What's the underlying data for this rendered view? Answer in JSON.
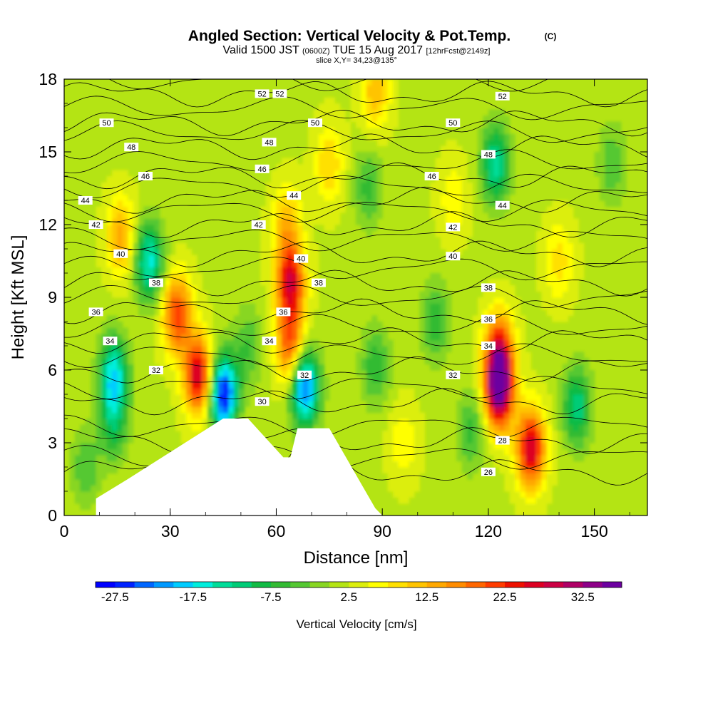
{
  "chart_data": {
    "type": "heatmap",
    "title": "Angled Section: Vertical Velocity & Pot.Temp.",
    "title_unit": "(C)",
    "subtitle": {
      "main_a": "Valid 1500 JST",
      "small_a": "(0600Z)",
      "main_b": "TUE 15 Aug 2017",
      "small_b": "[12hrFcst@2149z]"
    },
    "slice_text": "slice X,Y= 34,23@135°",
    "xlabel": "Distance [nm]",
    "ylabel": "Height [Kft MSL]",
    "xlim": [
      0,
      165
    ],
    "ylim": [
      0,
      18
    ],
    "x_ticks": [
      "0",
      "30",
      "60",
      "90",
      "120",
      "150"
    ],
    "y_ticks": [
      "0",
      "3",
      "6",
      "9",
      "12",
      "15",
      "18"
    ],
    "colorbar": {
      "label": "Vertical Velocity [cm/s]",
      "levels": [
        -30,
        -27.5,
        -25,
        -22.5,
        -20,
        -17.5,
        -15,
        -12.5,
        -10,
        -7.5,
        -5,
        -2.5,
        0,
        2.5,
        5,
        7.5,
        10,
        12.5,
        15,
        17.5,
        20,
        22.5,
        25,
        27.5,
        30,
        32.5,
        35,
        37.5
      ],
      "tick_labels": [
        "-27.5",
        "-17.5",
        "-7.5",
        "2.5",
        "12.5",
        "22.5",
        "32.5"
      ],
      "colors": [
        "#0000ff",
        "#0022ff",
        "#0066ff",
        "#0099ff",
        "#00ccff",
        "#00eedd",
        "#00dd99",
        "#00cc77",
        "#11bb44",
        "#33bb33",
        "#55c833",
        "#88d622",
        "#b4e414",
        "#dcee0c",
        "#ffff00",
        "#ffe000",
        "#ffc400",
        "#ffa800",
        "#ff8c00",
        "#ff6600",
        "#ff3c00",
        "#ee1100",
        "#dd0022",
        "#cc0044",
        "#b00066",
        "#8e0088",
        "#6c00a0"
      ]
    },
    "background_value": 2.0,
    "velocity_cells": [
      {
        "x": 123,
        "y": 5.2,
        "value": 36
      },
      {
        "x": 123,
        "y": 6.8,
        "value": 22
      },
      {
        "x": 132,
        "y": 2.8,
        "value": 28
      },
      {
        "x": 38,
        "y": 5.8,
        "value": 28
      },
      {
        "x": 32,
        "y": 8.3,
        "value": 22
      },
      {
        "x": 64,
        "y": 9.6,
        "value": 26
      },
      {
        "x": 64,
        "y": 7.0,
        "value": 20
      },
      {
        "x": 63,
        "y": 12.0,
        "value": 12
      },
      {
        "x": 45,
        "y": 5.0,
        "value": -28
      },
      {
        "x": 68,
        "y": 5.3,
        "value": -24
      },
      {
        "x": 24,
        "y": 10.5,
        "value": -16
      },
      {
        "x": 14,
        "y": 5.8,
        "value": -17
      },
      {
        "x": 14,
        "y": 3.8,
        "value": -8
      },
      {
        "x": 122,
        "y": 14.5,
        "value": -14
      },
      {
        "x": 145,
        "y": 4.5,
        "value": -12
      },
      {
        "x": 105,
        "y": 8.0,
        "value": -7
      },
      {
        "x": 88,
        "y": 6.2,
        "value": -7
      },
      {
        "x": 52,
        "y": 7.0,
        "value": -5
      },
      {
        "x": 86,
        "y": 13.5,
        "value": -6
      },
      {
        "x": 6,
        "y": 2.0,
        "value": -5
      },
      {
        "x": 16,
        "y": 11.5,
        "value": 14
      },
      {
        "x": 88,
        "y": 17.5,
        "value": 12
      },
      {
        "x": 75,
        "y": 14.5,
        "value": 10
      },
      {
        "x": 110,
        "y": 13.0,
        "value": 7
      },
      {
        "x": 140,
        "y": 10.5,
        "value": 9
      },
      {
        "x": 96,
        "y": 3.0,
        "value": 7
      },
      {
        "x": 155,
        "y": 14.5,
        "value": -5
      },
      {
        "x": 115,
        "y": 3.5,
        "value": -6
      }
    ],
    "terrain": {
      "x": [
        0,
        9,
        9,
        18,
        45,
        52,
        62,
        64,
        66,
        75,
        88,
        90,
        165
      ],
      "height_kft": [
        0,
        0,
        0.7,
        1.5,
        4.0,
        4.0,
        2.4,
        2.4,
        3.6,
        3.6,
        0.3,
        0,
        0
      ]
    },
    "theta_contours": [
      {
        "level": 26,
        "y0": 1.8,
        "label_x": 120,
        "label": "26"
      },
      {
        "level": 28,
        "y0": 3.1,
        "label_x": 124,
        "label": "28"
      },
      {
        "level": 30,
        "y0": 4.7,
        "label_x": 56,
        "label": "30"
      },
      {
        "level": 32,
        "y0": 6.0,
        "label_x": 26,
        "label": "32"
      },
      {
        "level": 34,
        "y0": 7.2,
        "label_x": 13,
        "label": "34"
      },
      {
        "level": 36,
        "y0": 8.4,
        "label_x": 9,
        "label": "36"
      },
      {
        "level": 38,
        "y0": 9.6,
        "label_x": 26,
        "label": "38"
      },
      {
        "level": 40,
        "y0": 10.8,
        "label_x": 16,
        "label": "40"
      },
      {
        "level": 42,
        "y0": 12.0,
        "label_x": 9,
        "label": "42"
      },
      {
        "level": 44,
        "y0": 13.0,
        "label_x": 6,
        "label": "44"
      },
      {
        "level": 46,
        "y0": 14.0,
        "label_x": 23,
        "label": "46"
      },
      {
        "level": 48,
        "y0": 15.2,
        "label_x": 19,
        "label": "48"
      },
      {
        "level": 50,
        "y0": 16.2,
        "label_x": 12,
        "label": "50"
      },
      {
        "level": 52,
        "y0": 17.4,
        "label_x": 56,
        "label": "52"
      }
    ],
    "theta_extra_labels": [
      {
        "x": 62,
        "y": 8.4,
        "label": "36"
      },
      {
        "x": 67,
        "y": 10.6,
        "label": "40"
      },
      {
        "x": 72,
        "y": 9.6,
        "label": "38"
      },
      {
        "x": 58,
        "y": 7.2,
        "label": "34"
      },
      {
        "x": 68,
        "y": 5.8,
        "label": "32"
      },
      {
        "x": 110,
        "y": 5.8,
        "label": "32"
      },
      {
        "x": 120,
        "y": 7.0,
        "label": "34"
      },
      {
        "x": 120,
        "y": 8.1,
        "label": "36"
      },
      {
        "x": 120,
        "y": 9.4,
        "label": "38"
      },
      {
        "x": 110,
        "y": 10.7,
        "label": "40"
      },
      {
        "x": 110,
        "y": 11.9,
        "label": "42"
      },
      {
        "x": 124,
        "y": 12.8,
        "label": "44"
      },
      {
        "x": 104,
        "y": 14.0,
        "label": "46"
      },
      {
        "x": 120,
        "y": 14.9,
        "label": "48"
      },
      {
        "x": 110,
        "y": 16.2,
        "label": "50"
      },
      {
        "x": 124,
        "y": 17.3,
        "label": "52"
      },
      {
        "x": 65,
        "y": 13.2,
        "label": "44"
      },
      {
        "x": 56,
        "y": 14.3,
        "label": "46"
      },
      {
        "x": 58,
        "y": 15.4,
        "label": "48"
      },
      {
        "x": 71,
        "y": 16.2,
        "label": "50"
      },
      {
        "x": 61,
        "y": 17.4,
        "label": "52"
      },
      {
        "x": 55,
        "y": 12.0,
        "label": "42"
      }
    ]
  }
}
